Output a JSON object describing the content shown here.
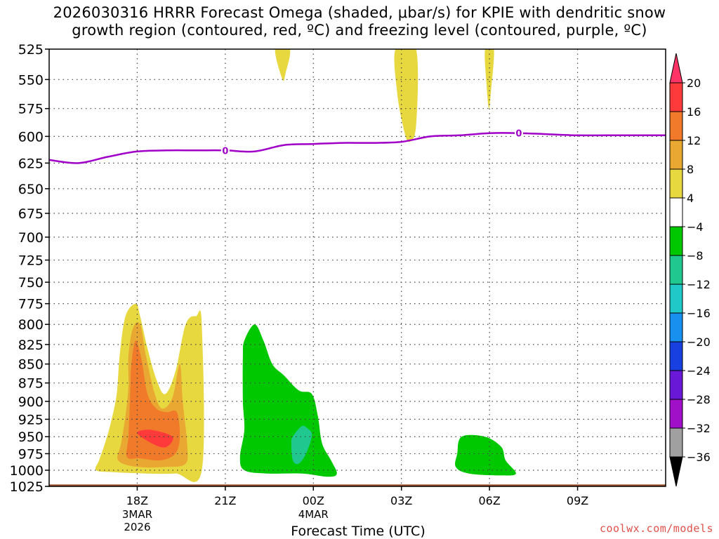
{
  "title": {
    "line1": "2026030316 HRRR Forecast Omega (shaded, μbar/s) for KPIE with dendritic snow",
    "line2": "growth region (contoured, red, ºC) and freezing level (contoured, purple, ºC)"
  },
  "credit": "coolwx.com/models",
  "chart_data": {
    "type": "contour-cross-section",
    "title": "2026030316 HRRR Forecast Omega (shaded, μbar/s) for KPIE with dendritic snow growth region (contoured, red, ºC) and freezing level (contoured, purple, ºC)",
    "xlabel": "Forecast Time (UTC)",
    "ylabel": "",
    "x_range_hours_from_18Z": [
      -3,
      18
    ],
    "x_ticks": [
      {
        "hour": 0,
        "label": "18Z",
        "sub": [
          "3MAR",
          "2026"
        ]
      },
      {
        "hour": 3,
        "label": "21Z",
        "sub": []
      },
      {
        "hour": 6,
        "label": "00Z",
        "sub": [
          "4MAR"
        ]
      },
      {
        "hour": 9,
        "label": "03Z",
        "sub": []
      },
      {
        "hour": 12,
        "label": "06Z",
        "sub": []
      },
      {
        "hour": 15,
        "label": "09Z",
        "sub": []
      }
    ],
    "y_ticks": [
      525,
      550,
      575,
      600,
      625,
      650,
      675,
      700,
      725,
      750,
      775,
      800,
      825,
      850,
      875,
      900,
      925,
      950,
      975,
      1000,
      1025
    ],
    "y_range_hpa": [
      525,
      1025
    ],
    "colorbar": {
      "labels": [
        "20",
        "16",
        "12",
        "8",
        "4",
        "−4",
        "−8",
        "−12",
        "−16",
        "−20",
        "−24",
        "−28",
        "−32",
        "−36"
      ],
      "colors": [
        "#ff3366",
        "#ff3a3a",
        "#f07a2a",
        "#e8a832",
        "#e8d840",
        "#ffffff",
        "#00c800",
        "#20c890",
        "#20c8c8",
        "#1890f0",
        "#1840e0",
        "#6a18d8",
        "#a010c8",
        "#a0a0a0",
        "#000000"
      ]
    },
    "freezing_level": {
      "label": "0",
      "label_hours": [
        3,
        13
      ],
      "color": "#a000c8",
      "points": [
        [
          -3,
          622
        ],
        [
          -2,
          625
        ],
        [
          -1,
          619
        ],
        [
          0,
          614
        ],
        [
          1,
          613
        ],
        [
          2,
          613
        ],
        [
          3,
          613
        ],
        [
          4,
          614
        ],
        [
          5,
          608
        ],
        [
          6,
          607
        ],
        [
          7,
          606
        ],
        [
          8,
          606
        ],
        [
          9,
          605
        ],
        [
          10,
          600
        ],
        [
          11,
          599
        ],
        [
          12,
          597
        ],
        [
          13,
          597
        ],
        [
          14,
          598
        ],
        [
          15,
          599
        ],
        [
          16,
          599
        ],
        [
          17,
          599
        ],
        [
          18,
          599
        ]
      ]
    },
    "omega_regions": [
      {
        "value_band": "4 to 8",
        "color": "#e8d840",
        "points": [
          [
            -1.4,
            1000
          ],
          [
            -1.3,
            985
          ],
          [
            -1.1,
            960
          ],
          [
            -0.9,
            930
          ],
          [
            -0.7,
            890
          ],
          [
            -0.6,
            840
          ],
          [
            -0.4,
            790
          ],
          [
            -0.05,
            775
          ],
          [
            0.1,
            790
          ],
          [
            0.35,
            830
          ],
          [
            0.65,
            870
          ],
          [
            0.95,
            890
          ],
          [
            1.3,
            860
          ],
          [
            1.65,
            800
          ],
          [
            2.0,
            790
          ],
          [
            2.2,
            800
          ],
          [
            2.2,
            1000
          ],
          [
            1.3,
            1005
          ],
          [
            0.3,
            1005
          ],
          [
            -0.8,
            1003
          ]
        ]
      },
      {
        "value_band": "8 to 12",
        "color": "#e8a832",
        "points": [
          [
            -0.65,
            985
          ],
          [
            -0.55,
            960
          ],
          [
            -0.4,
            920
          ],
          [
            -0.3,
            880
          ],
          [
            -0.3,
            840
          ],
          [
            -0.15,
            805
          ],
          [
            0.1,
            800
          ],
          [
            0.3,
            840
          ],
          [
            0.6,
            890
          ],
          [
            0.85,
            910
          ],
          [
            1.2,
            895
          ],
          [
            1.45,
            850
          ],
          [
            1.55,
            900
          ],
          [
            1.7,
            960
          ],
          [
            1.65,
            990
          ],
          [
            1.0,
            995
          ],
          [
            0.0,
            995
          ]
        ]
      },
      {
        "value_band": "12 to 16",
        "color": "#f07a2a",
        "points": [
          [
            -0.35,
            980
          ],
          [
            -0.3,
            950
          ],
          [
            -0.25,
            900
          ],
          [
            -0.2,
            850
          ],
          [
            -0.05,
            820
          ],
          [
            0.15,
            845
          ],
          [
            0.35,
            890
          ],
          [
            0.65,
            910
          ],
          [
            1.0,
            915
          ],
          [
            1.35,
            915
          ],
          [
            1.45,
            950
          ],
          [
            1.3,
            975
          ],
          [
            0.8,
            985
          ],
          [
            0.1,
            982
          ]
        ]
      },
      {
        "value_band": "16 to 20",
        "color": "#ff3a3a",
        "points": [
          [
            0.0,
            945
          ],
          [
            0.45,
            940
          ],
          [
            1.2,
            950
          ],
          [
            1.0,
            965
          ],
          [
            0.6,
            962
          ]
        ]
      },
      {
        "value_band": "4 to 8",
        "color": "#e8d840",
        "points": [
          [
            4.7,
            525
          ],
          [
            5.2,
            525
          ],
          [
            5.05,
            545
          ],
          [
            4.95,
            550
          ]
        ]
      },
      {
        "value_band": "4 to 8",
        "color": "#e8d840",
        "points": [
          [
            8.8,
            525
          ],
          [
            9.5,
            525
          ],
          [
            9.5,
            590
          ],
          [
            9.25,
            605
          ],
          [
            9.05,
            590
          ],
          [
            8.85,
            560
          ]
        ]
      },
      {
        "value_band": "4 to 8",
        "color": "#e8d840",
        "points": [
          [
            11.85,
            525
          ],
          [
            12.15,
            525
          ],
          [
            12.05,
            560
          ],
          [
            11.98,
            575
          ],
          [
            11.9,
            555
          ]
        ]
      },
      {
        "value_band": "-8 to -4",
        "color": "#00c800",
        "points": [
          [
            3.65,
            1000
          ],
          [
            3.5,
            980
          ],
          [
            3.65,
            940
          ],
          [
            3.6,
            900
          ],
          [
            3.6,
            840
          ],
          [
            3.65,
            820
          ],
          [
            4.0,
            800
          ],
          [
            4.3,
            820
          ],
          [
            4.6,
            850
          ],
          [
            5.0,
            865
          ],
          [
            5.5,
            885
          ],
          [
            5.95,
            890
          ],
          [
            6.15,
            920
          ],
          [
            6.3,
            960
          ],
          [
            6.6,
            985
          ],
          [
            6.8,
            1005
          ],
          [
            6.5,
            1010
          ],
          [
            5.6,
            1005
          ],
          [
            4.4,
            1005
          ]
        ]
      },
      {
        "value_band": "-12 to -8",
        "color": "#20c890",
        "points": [
          [
            5.3,
            950
          ],
          [
            5.6,
            935
          ],
          [
            5.8,
            938
          ],
          [
            5.95,
            948
          ],
          [
            5.75,
            975
          ],
          [
            5.5,
            990
          ],
          [
            5.3,
            985
          ],
          [
            5.25,
            960
          ]
        ]
      },
      {
        "value_band": "-8 to -4",
        "color": "#00c800",
        "points": [
          [
            10.85,
            995
          ],
          [
            10.9,
            975
          ],
          [
            11.05,
            950
          ],
          [
            11.85,
            950
          ],
          [
            12.4,
            965
          ],
          [
            12.55,
            985
          ],
          [
            12.9,
            1005
          ],
          [
            12.4,
            1008
          ],
          [
            11.3,
            1005
          ]
        ]
      }
    ],
    "terrain": {
      "color": "#a0522d",
      "surface_hpa": 1022
    }
  }
}
